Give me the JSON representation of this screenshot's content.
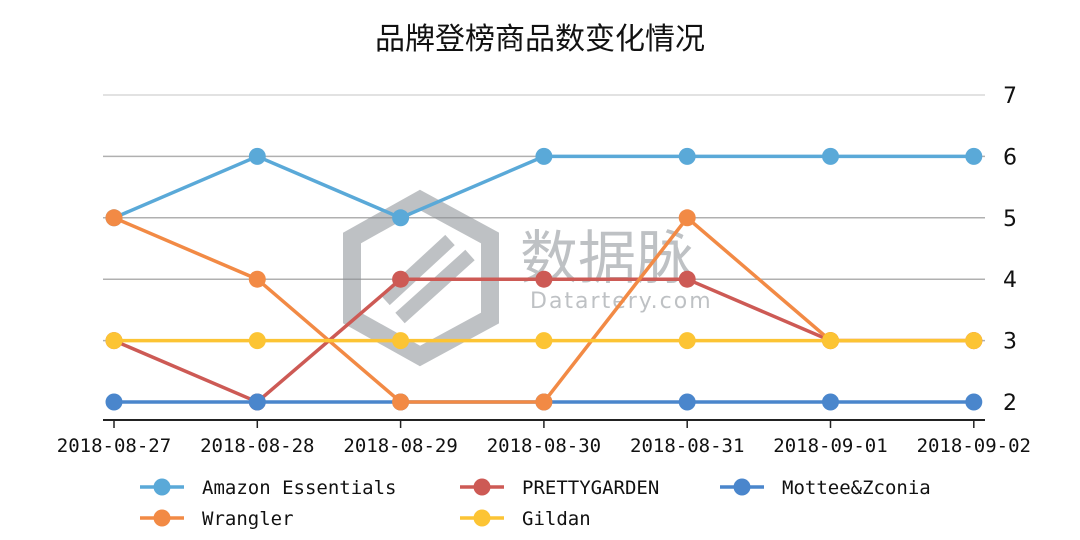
{
  "chart_data": {
    "type": "line",
    "title": "品牌登榜商品数变化情况",
    "xlabel": "",
    "ylabel": "",
    "x": [
      "2018-08-27",
      "2018-08-28",
      "2018-08-29",
      "2018-08-30",
      "2018-08-31",
      "2018-09-01",
      "2018-09-02"
    ],
    "yticks": [
      2,
      3,
      4,
      5,
      6,
      7
    ],
    "ylim": [
      1.7,
      7
    ],
    "grid": true,
    "y_axis_side": "right",
    "legend_placement": "bottom",
    "series": [
      {
        "name": "Amazon Essentials",
        "color": "#5aa9d8",
        "values": [
          5,
          6,
          5,
          6,
          6,
          6,
          6
        ]
      },
      {
        "name": "PRETTYGARDEN",
        "color": "#cd5a55",
        "values": [
          3,
          2,
          4,
          4,
          4,
          3,
          3
        ]
      },
      {
        "name": "Mottee&Zconia",
        "color": "#4a86cc",
        "values": [
          2,
          2,
          2,
          2,
          2,
          2,
          2
        ]
      },
      {
        "name": "Wrangler",
        "color": "#f28a45",
        "values": [
          5,
          4,
          2,
          2,
          5,
          3,
          3
        ]
      },
      {
        "name": "Gildan",
        "color": "#fcc434",
        "values": [
          3,
          3,
          3,
          3,
          3,
          3,
          3
        ]
      }
    ]
  },
  "watermark": {
    "cn": "数据脉",
    "en": "Datartery.com"
  }
}
